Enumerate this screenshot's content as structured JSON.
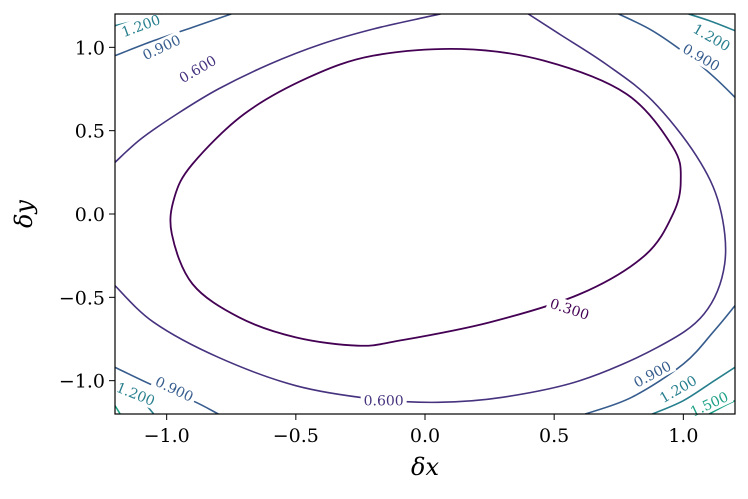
{
  "chart_data": {
    "type": "contour",
    "xlabel": "δx",
    "ylabel": "δy",
    "xlim": [
      -1.2,
      1.2
    ],
    "ylim": [
      -1.2,
      1.2
    ],
    "xticks": [
      {
        "value": -1.0,
        "label": "−1.0"
      },
      {
        "value": -0.5,
        "label": "−0.5"
      },
      {
        "value": 0.0,
        "label": "0.0"
      },
      {
        "value": 0.5,
        "label": "0.5"
      },
      {
        "value": 1.0,
        "label": "1.0"
      }
    ],
    "yticks": [
      {
        "value": -1.0,
        "label": "−1.0"
      },
      {
        "value": -0.5,
        "label": "−0.5"
      },
      {
        "value": 0.0,
        "label": "0.0"
      },
      {
        "value": 0.5,
        "label": "0.5"
      },
      {
        "value": 1.0,
        "label": "1.0"
      }
    ],
    "grid": false,
    "colormap": "viridis",
    "levels": [
      {
        "value": 0.3,
        "color": "#440154",
        "closed": true,
        "points": [
          [
            0.14,
            0.99
          ],
          [
            0.46,
            0.92
          ],
          [
            0.78,
            0.72
          ],
          [
            0.96,
            0.4
          ],
          [
            0.99,
            0.2
          ],
          [
            0.96,
            0.0
          ],
          [
            0.85,
            -0.25
          ],
          [
            0.6,
            -0.48
          ],
          [
            0.25,
            -0.65
          ],
          [
            -0.1,
            -0.76
          ],
          [
            -0.26,
            -0.79
          ],
          [
            -0.5,
            -0.74
          ],
          [
            -0.72,
            -0.62
          ],
          [
            -0.9,
            -0.42
          ],
          [
            -0.98,
            -0.12
          ],
          [
            -0.97,
            0.1
          ],
          [
            -0.9,
            0.3
          ],
          [
            -0.7,
            0.6
          ],
          [
            -0.45,
            0.82
          ],
          [
            -0.2,
            0.95
          ]
        ],
        "labels": [
          {
            "x": 0.56,
            "y": -0.57,
            "text": "0.300",
            "angle": 18
          }
        ]
      },
      {
        "value": 0.6,
        "color": "#46327e",
        "closed": false,
        "points": [
          [
            -1.2,
            0.31
          ],
          [
            -1.1,
            0.45
          ],
          [
            -0.96,
            0.6
          ],
          [
            -0.8,
            0.75
          ],
          [
            -0.6,
            0.9
          ],
          [
            -0.4,
            1.02
          ],
          [
            -0.2,
            1.11
          ],
          [
            0.0,
            1.18
          ],
          [
            0.06,
            1.2
          ]
        ],
        "points2": [
          [
            -1.2,
            -0.43
          ],
          [
            -1.05,
            -0.65
          ],
          [
            -0.8,
            -0.86
          ],
          [
            -0.5,
            -1.03
          ],
          [
            -0.2,
            -1.11
          ],
          [
            0.05,
            -1.13
          ],
          [
            0.3,
            -1.1
          ],
          [
            0.6,
            -1.0
          ],
          [
            0.9,
            -0.8
          ],
          [
            1.08,
            -0.6
          ],
          [
            1.16,
            -0.3
          ],
          [
            1.14,
            0.05
          ],
          [
            1.05,
            0.35
          ],
          [
            0.88,
            0.68
          ],
          [
            0.7,
            0.9
          ],
          [
            0.52,
            1.08
          ],
          [
            0.4,
            1.2
          ]
        ],
        "labels": [
          {
            "x": -0.88,
            "y": 0.87,
            "text": "0.600",
            "angle": -30
          },
          {
            "x": -0.16,
            "y": -1.12,
            "text": "0.600",
            "angle": 0
          }
        ]
      },
      {
        "value": 0.9,
        "color": "#365c8d",
        "closed": false,
        "points": [
          [
            -1.2,
            0.95
          ],
          [
            -1.05,
            1.04
          ],
          [
            -0.9,
            1.12
          ],
          [
            -0.75,
            1.2
          ]
        ],
        "points2": [
          [
            0.75,
            1.2
          ],
          [
            0.88,
            1.1
          ],
          [
            1.02,
            0.95
          ],
          [
            1.12,
            0.82
          ],
          [
            1.2,
            0.7
          ]
        ],
        "points3": [
          [
            -1.2,
            -0.92
          ],
          [
            -1.05,
            -1.03
          ],
          [
            -0.9,
            -1.12
          ],
          [
            -0.8,
            -1.2
          ]
        ],
        "points4": [
          [
            0.62,
            -1.2
          ],
          [
            0.8,
            -1.1
          ],
          [
            1.0,
            -0.9
          ],
          [
            1.12,
            -0.7
          ],
          [
            1.2,
            -0.55
          ]
        ],
        "labels": [
          {
            "x": -1.02,
            "y": 1.0,
            "text": "0.900",
            "angle": -25
          },
          {
            "x": 1.07,
            "y": 0.94,
            "text": "0.900",
            "angle": 30
          },
          {
            "x": -0.97,
            "y": -1.05,
            "text": "0.900",
            "angle": 25
          },
          {
            "x": 0.88,
            "y": -0.96,
            "text": "0.900",
            "angle": -28
          }
        ]
      },
      {
        "value": 1.2,
        "color": "#277f8e",
        "closed": false,
        "points": [
          [
            -1.2,
            1.13
          ],
          [
            -1.12,
            1.16
          ],
          [
            -1.02,
            1.2
          ]
        ],
        "points2": [
          [
            1.02,
            1.2
          ],
          [
            1.1,
            1.16
          ],
          [
            1.2,
            1.1
          ]
        ],
        "points3": [
          [
            -1.2,
            -1.02
          ],
          [
            -1.12,
            -1.08
          ],
          [
            -1.05,
            -1.2
          ]
        ],
        "points4": [
          [
            0.88,
            -1.2
          ],
          [
            1.0,
            -1.12
          ],
          [
            1.12,
            -1.0
          ],
          [
            1.2,
            -0.92
          ]
        ],
        "labels": [
          {
            "x": -1.1,
            "y": 1.13,
            "text": "1.200",
            "angle": -20
          },
          {
            "x": 1.11,
            "y": 1.06,
            "text": "1.200",
            "angle": 30
          },
          {
            "x": -1.12,
            "y": -1.08,
            "text": "1.200",
            "angle": 22
          },
          {
            "x": 0.98,
            "y": -1.05,
            "text": "1.200",
            "angle": -30
          }
        ]
      },
      {
        "value": 1.5,
        "color": "#1fa187",
        "closed": false,
        "points": [
          [
            -1.2,
            -1.15
          ],
          [
            -1.18,
            -1.2
          ]
        ],
        "points2": [
          [
            1.1,
            -1.2
          ],
          [
            1.16,
            -1.15
          ],
          [
            1.2,
            -1.12
          ]
        ],
        "labels": [
          {
            "x": 1.1,
            "y": -1.14,
            "text": "1.500",
            "angle": -25
          }
        ]
      }
    ]
  }
}
